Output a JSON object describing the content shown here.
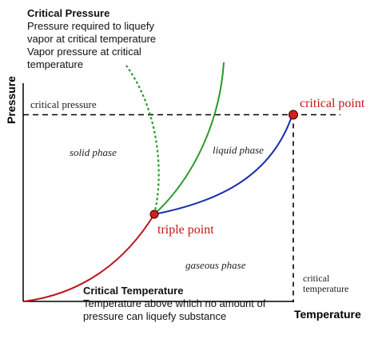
{
  "notes": {
    "critical_pressure": {
      "title": "Critical Pressure",
      "lines": [
        "Pressure required to liquefy",
        "vapor at critical temperature",
        "Vapor pressure at critical",
        "temperature"
      ]
    },
    "critical_temperature": {
      "title": "Critical Temperature",
      "lines": [
        "Temperature above which no amount of",
        "pressure can liquefy substance"
      ]
    }
  },
  "axes": {
    "y_label": "Pressure",
    "x_label": "Temperature"
  },
  "labels": {
    "critical_pressure": "critical pressure",
    "critical_point": "critical point",
    "solid_phase": "solid phase",
    "liquid_phase": "liquid phase",
    "triple_point": "triple point",
    "gaseous_phase": "gaseous phase",
    "critical_temperature_line1": "critical",
    "critical_temperature_line2": "temperature"
  },
  "colors": {
    "sublimation_curve": "#c0141c",
    "vaporization_curve": "#1c2fb0",
    "fusion_curve": "#2a9a2a",
    "fusion_curve_anomalous": "#2a9a2a",
    "point_fill": "#d21f1f",
    "point_label": "#c41616",
    "guide_lines": "#000000"
  }
}
